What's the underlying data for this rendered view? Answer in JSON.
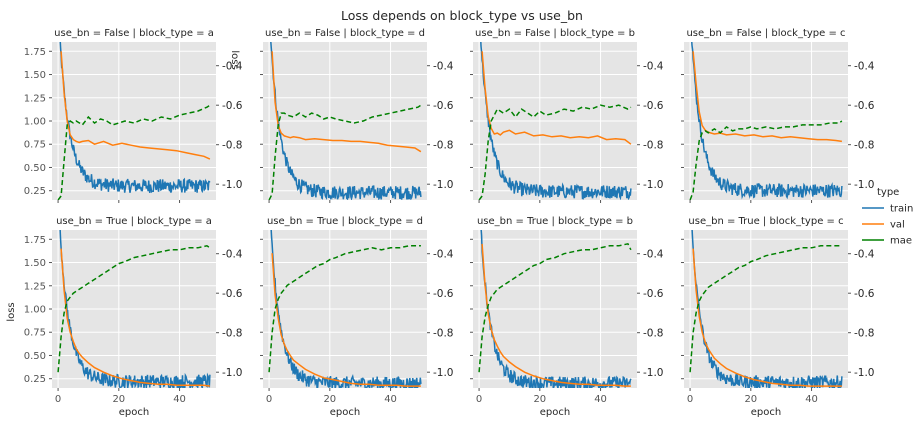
{
  "chart_data": {
    "type": "line",
    "title": "Loss depends on block_type vs use_bn",
    "xlabel": "epoch",
    "ylabel": "loss",
    "ylabel_right": "loss",
    "xlim": [
      -2,
      52
    ],
    "xticks": [
      0,
      20,
      40
    ],
    "ylim_left": [
      0.15,
      1.85
    ],
    "yticks_left": [
      0.25,
      0.5,
      0.75,
      1.0,
      1.25,
      1.5,
      1.75
    ],
    "ytick_labels_left": [
      "0.25",
      "0.50",
      "0.75",
      "1.00",
      "1.25",
      "1.50",
      "1.75"
    ],
    "ylim_right": [
      -1.08,
      -0.28
    ],
    "yticks_right": [
      -1.0,
      -0.8,
      -0.6,
      -0.4
    ],
    "ytick_labels_right": [
      "-1.0",
      "-0.8",
      "-0.6",
      "-0.4"
    ],
    "grid": true,
    "legend": {
      "title": "type",
      "placement": "right-center",
      "entries": [
        {
          "name": "train",
          "color": "#1f77b4"
        },
        {
          "name": "val",
          "color": "#ff7f0e"
        },
        {
          "name": "mae",
          "color": "#008000"
        }
      ]
    },
    "rows": [
      "use_bn = False",
      "use_bn = True"
    ],
    "cols": [
      "block_type = a",
      "block_type = d",
      "block_type = b",
      "block_type = c"
    ],
    "panels": [
      {
        "title": "use_bn = False | block_type = a",
        "train_end": 0.3,
        "val_x": [
          1,
          2,
          3,
          4,
          5,
          6,
          7,
          8,
          10,
          12,
          15,
          18,
          21,
          24,
          27,
          30,
          33,
          36,
          39,
          42,
          45,
          48,
          50
        ],
        "val": [
          1.75,
          1.3,
          1.0,
          0.85,
          0.8,
          0.78,
          0.77,
          0.78,
          0.79,
          0.75,
          0.78,
          0.74,
          0.76,
          0.74,
          0.72,
          0.71,
          0.7,
          0.69,
          0.68,
          0.66,
          0.64,
          0.62,
          0.59
        ],
        "mae_x": [
          0,
          1,
          2,
          3,
          4,
          5,
          6,
          8,
          10,
          12,
          14,
          16,
          18,
          20,
          22,
          25,
          28,
          31,
          34,
          37,
          40,
          43,
          46,
          49,
          50
        ],
        "mae": [
          -1.08,
          -1.06,
          -0.88,
          -0.7,
          -0.68,
          -0.69,
          -0.68,
          -0.7,
          -0.66,
          -0.69,
          -0.67,
          -0.68,
          -0.7,
          -0.69,
          -0.68,
          -0.69,
          -0.67,
          -0.68,
          -0.66,
          -0.67,
          -0.65,
          -0.64,
          -0.63,
          -0.61,
          -0.6
        ]
      },
      {
        "title": "use_bn = False | block_type = d",
        "train_end": 0.23,
        "val_x": [
          1,
          2,
          3,
          4,
          5,
          6,
          7,
          8,
          10,
          12,
          15,
          18,
          21,
          24,
          27,
          30,
          33,
          36,
          39,
          42,
          45,
          48,
          50
        ],
        "val": [
          1.75,
          1.2,
          0.95,
          0.87,
          0.84,
          0.83,
          0.82,
          0.83,
          0.82,
          0.8,
          0.81,
          0.8,
          0.79,
          0.79,
          0.78,
          0.78,
          0.77,
          0.76,
          0.74,
          0.73,
          0.72,
          0.71,
          0.67
        ],
        "mae_x": [
          0,
          1,
          2,
          3,
          4,
          5,
          6,
          8,
          10,
          12,
          14,
          16,
          18,
          20,
          22,
          25,
          28,
          31,
          34,
          37,
          40,
          43,
          46,
          49,
          50
        ],
        "mae": [
          -1.08,
          -1.05,
          -0.86,
          -0.7,
          -0.64,
          -0.64,
          -0.65,
          -0.66,
          -0.64,
          -0.66,
          -0.64,
          -0.65,
          -0.67,
          -0.66,
          -0.67,
          -0.68,
          -0.69,
          -0.68,
          -0.66,
          -0.65,
          -0.64,
          -0.63,
          -0.62,
          -0.61,
          -0.6
        ]
      },
      {
        "title": "use_bn = False | block_type = b",
        "train_end": 0.24,
        "val_x": [
          1,
          2,
          3,
          4,
          5,
          6,
          7,
          8,
          10,
          12,
          15,
          18,
          21,
          24,
          27,
          30,
          33,
          36,
          39,
          42,
          45,
          48,
          50
        ],
        "val": [
          1.75,
          1.35,
          1.05,
          0.92,
          0.86,
          0.87,
          0.85,
          0.88,
          0.9,
          0.86,
          0.88,
          0.84,
          0.85,
          0.83,
          0.84,
          0.82,
          0.83,
          0.82,
          0.84,
          0.8,
          0.81,
          0.8,
          0.75
        ],
        "mae_x": [
          0,
          1,
          2,
          3,
          4,
          5,
          6,
          8,
          10,
          12,
          14,
          16,
          18,
          20,
          22,
          25,
          28,
          31,
          34,
          37,
          40,
          43,
          46,
          49,
          50
        ],
        "mae": [
          -1.08,
          -1.06,
          -0.95,
          -0.78,
          -0.68,
          -0.65,
          -0.62,
          -0.64,
          -0.62,
          -0.66,
          -0.62,
          -0.64,
          -0.66,
          -0.63,
          -0.65,
          -0.64,
          -0.62,
          -0.63,
          -0.61,
          -0.62,
          -0.6,
          -0.61,
          -0.6,
          -0.62,
          -0.61
        ]
      },
      {
        "title": "use_bn = False | block_type = c",
        "train_end": 0.25,
        "val_x": [
          1,
          2,
          3,
          4,
          5,
          6,
          7,
          8,
          10,
          12,
          15,
          18,
          21,
          24,
          27,
          30,
          33,
          36,
          39,
          42,
          45,
          48,
          50
        ],
        "val": [
          1.75,
          1.4,
          1.1,
          0.95,
          0.9,
          0.88,
          0.87,
          0.86,
          0.87,
          0.85,
          0.86,
          0.84,
          0.85,
          0.83,
          0.84,
          0.82,
          0.83,
          0.82,
          0.81,
          0.8,
          0.8,
          0.79,
          0.78
        ],
        "mae_x": [
          0,
          1,
          2,
          3,
          4,
          5,
          6,
          8,
          10,
          12,
          14,
          16,
          18,
          20,
          22,
          25,
          28,
          31,
          34,
          37,
          40,
          43,
          46,
          49,
          50
        ],
        "mae": [
          -1.08,
          -1.04,
          -0.9,
          -0.78,
          -0.74,
          -0.73,
          -0.74,
          -0.72,
          -0.74,
          -0.71,
          -0.73,
          -0.72,
          -0.72,
          -0.71,
          -0.72,
          -0.71,
          -0.72,
          -0.71,
          -0.71,
          -0.7,
          -0.7,
          -0.7,
          -0.69,
          -0.69,
          -0.68
        ]
      },
      {
        "title": "use_bn = True | block_type = a",
        "train_end": 0.22,
        "val_x": [
          1,
          2,
          3,
          4,
          5,
          6,
          7,
          8,
          10,
          12,
          15,
          18,
          21,
          24,
          27,
          30,
          33,
          36,
          39,
          42,
          45,
          48,
          50
        ],
        "val": [
          1.65,
          1.2,
          0.9,
          0.75,
          0.65,
          0.57,
          0.52,
          0.48,
          0.42,
          0.37,
          0.32,
          0.28,
          0.25,
          0.23,
          0.21,
          0.2,
          0.19,
          0.19,
          0.18,
          0.18,
          0.18,
          0.18,
          0.17
        ],
        "mae_x": [
          0,
          1,
          2,
          3,
          4,
          5,
          6,
          8,
          10,
          12,
          14,
          16,
          18,
          20,
          22,
          25,
          28,
          31,
          34,
          37,
          40,
          43,
          46,
          49,
          50
        ],
        "mae": [
          -1.0,
          -0.82,
          -0.7,
          -0.64,
          -0.62,
          -0.6,
          -0.59,
          -0.57,
          -0.55,
          -0.53,
          -0.51,
          -0.49,
          -0.47,
          -0.45,
          -0.44,
          -0.42,
          -0.41,
          -0.4,
          -0.39,
          -0.38,
          -0.38,
          -0.37,
          -0.37,
          -0.36,
          -0.37
        ]
      },
      {
        "title": "use_bn = True | block_type = d",
        "train_end": 0.2,
        "val_x": [
          1,
          2,
          3,
          4,
          5,
          6,
          7,
          8,
          10,
          12,
          15,
          18,
          21,
          24,
          27,
          30,
          33,
          36,
          39,
          42,
          45,
          48,
          50
        ],
        "val": [
          1.6,
          1.15,
          0.9,
          0.72,
          0.62,
          0.55,
          0.5,
          0.45,
          0.4,
          0.35,
          0.3,
          0.26,
          0.24,
          0.22,
          0.2,
          0.19,
          0.19,
          0.18,
          0.18,
          0.18,
          0.17,
          0.17,
          0.17
        ],
        "mae_x": [
          0,
          1,
          2,
          3,
          4,
          5,
          6,
          8,
          10,
          12,
          14,
          16,
          18,
          20,
          22,
          25,
          28,
          31,
          34,
          37,
          40,
          43,
          46,
          49,
          50
        ],
        "mae": [
          -1.0,
          -0.8,
          -0.68,
          -0.63,
          -0.6,
          -0.58,
          -0.56,
          -0.54,
          -0.52,
          -0.5,
          -0.48,
          -0.46,
          -0.45,
          -0.43,
          -0.42,
          -0.4,
          -0.39,
          -0.38,
          -0.37,
          -0.38,
          -0.37,
          -0.37,
          -0.36,
          -0.36,
          -0.36
        ]
      },
      {
        "title": "use_bn = True | block_type = b",
        "train_end": 0.2,
        "val_x": [
          1,
          2,
          3,
          4,
          5,
          6,
          7,
          8,
          10,
          12,
          15,
          18,
          21,
          24,
          27,
          30,
          33,
          36,
          39,
          42,
          45,
          48,
          50
        ],
        "val": [
          1.7,
          1.25,
          0.95,
          0.78,
          0.67,
          0.6,
          0.54,
          0.49,
          0.43,
          0.38,
          0.32,
          0.28,
          0.25,
          0.23,
          0.21,
          0.2,
          0.19,
          0.19,
          0.18,
          0.18,
          0.18,
          0.17,
          0.17
        ],
        "mae_x": [
          0,
          1,
          2,
          3,
          4,
          5,
          6,
          8,
          10,
          12,
          14,
          16,
          18,
          20,
          22,
          25,
          28,
          31,
          34,
          37,
          40,
          43,
          46,
          49,
          50
        ],
        "mae": [
          -1.0,
          -0.82,
          -0.72,
          -0.66,
          -0.62,
          -0.6,
          -0.58,
          -0.56,
          -0.54,
          -0.52,
          -0.5,
          -0.48,
          -0.46,
          -0.45,
          -0.43,
          -0.42,
          -0.4,
          -0.39,
          -0.38,
          -0.38,
          -0.37,
          -0.36,
          -0.36,
          -0.35,
          -0.38
        ]
      },
      {
        "title": "use_bn = True | block_type = c",
        "train_end": 0.21,
        "val_x": [
          1,
          2,
          3,
          4,
          5,
          6,
          7,
          8,
          10,
          12,
          15,
          18,
          21,
          24,
          27,
          30,
          33,
          36,
          39,
          42,
          45,
          48,
          50
        ],
        "val": [
          1.65,
          1.2,
          0.92,
          0.75,
          0.64,
          0.57,
          0.52,
          0.47,
          0.41,
          0.36,
          0.31,
          0.27,
          0.24,
          0.22,
          0.2,
          0.19,
          0.18,
          0.18,
          0.17,
          0.17,
          0.17,
          0.17,
          0.17
        ],
        "mae_x": [
          0,
          1,
          2,
          3,
          4,
          5,
          6,
          8,
          10,
          12,
          14,
          16,
          18,
          20,
          22,
          25,
          28,
          31,
          34,
          37,
          40,
          43,
          46,
          49,
          50
        ],
        "mae": [
          -1.0,
          -0.8,
          -0.7,
          -0.64,
          -0.61,
          -0.59,
          -0.57,
          -0.55,
          -0.53,
          -0.51,
          -0.49,
          -0.47,
          -0.46,
          -0.44,
          -0.43,
          -0.41,
          -0.4,
          -0.39,
          -0.38,
          -0.37,
          -0.37,
          -0.36,
          -0.36,
          -0.36,
          -0.36
        ]
      }
    ]
  },
  "colors": {
    "panel_bg": "#e5e5e5",
    "grid": "#ffffff",
    "train": "#1f77b4",
    "val": "#ff7f0e",
    "mae": "#008000"
  }
}
